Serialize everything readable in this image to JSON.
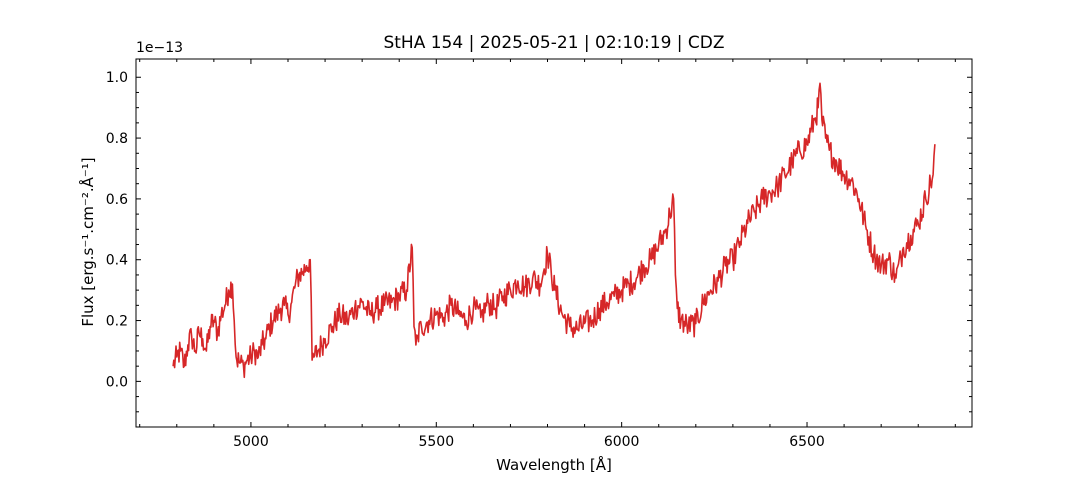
{
  "chart_data": {
    "type": "line",
    "title": "StHA 154 | 2025-05-21 | 02:10:19 | CDZ",
    "xlabel": "Wavelength [Å]",
    "ylabel": "Flux [erg.s⁻¹.cm⁻².Å⁻¹]",
    "y_offset_label": "1e−13",
    "xlim": [
      4690,
      6945
    ],
    "ylim": [
      -0.15,
      1.06
    ],
    "y_scale_factor": 1e-13,
    "x_ticks": [
      5000,
      5500,
      6000,
      6500
    ],
    "x_tick_labels": [
      "5000",
      "5500",
      "6000",
      "6500"
    ],
    "y_ticks": [
      0.0,
      0.2,
      0.4,
      0.6,
      0.8,
      1.0
    ],
    "y_tick_labels": [
      "0.0",
      "0.2",
      "0.4",
      "0.6",
      "0.8",
      "1.0"
    ],
    "grid": false,
    "line_color": "#d62728",
    "series": [
      {
        "x": [
          4790,
          4800,
          4810,
          4820,
          4830,
          4840,
          4850,
          4860,
          4870,
          4880,
          4890,
          4900,
          4910,
          4920,
          4930,
          4940,
          4950,
          4955,
          4960,
          4970,
          4980,
          4990,
          5000,
          5010,
          5020,
          5030,
          5040,
          5050,
          5060,
          5070,
          5080,
          5090,
          5100,
          5110,
          5120,
          5130,
          5140,
          5150,
          5160,
          5165,
          5170,
          5180,
          5190,
          5200,
          5220,
          5240,
          5260,
          5280,
          5300,
          5320,
          5340,
          5360,
          5380,
          5400,
          5420,
          5435,
          5440,
          5445,
          5450,
          5460,
          5480,
          5500,
          5520,
          5540,
          5560,
          5580,
          5600,
          5620,
          5640,
          5660,
          5680,
          5700,
          5720,
          5740,
          5760,
          5780,
          5800,
          5810,
          5820,
          5840,
          5860,
          5880,
          5900,
          5920,
          5940,
          5960,
          5980,
          6000,
          6020,
          6040,
          6060,
          6080,
          6100,
          6120,
          6130,
          6140,
          6145,
          6150,
          6160,
          6180,
          6200,
          6220,
          6240,
          6260,
          6280,
          6300,
          6320,
          6340,
          6360,
          6380,
          6400,
          6420,
          6440,
          6460,
          6480,
          6500,
          6510,
          6520,
          6530,
          6535,
          6540,
          6550,
          6560,
          6580,
          6600,
          6620,
          6640,
          6660,
          6680,
          6700,
          6720,
          6740,
          6760,
          6780,
          6800,
          6820,
          6840,
          6845
        ],
        "y": [
          0.05,
          0.08,
          0.1,
          0.05,
          0.12,
          0.15,
          0.1,
          0.16,
          0.14,
          0.1,
          0.18,
          0.2,
          0.16,
          0.22,
          0.25,
          0.3,
          0.32,
          0.2,
          0.08,
          0.06,
          0.05,
          0.07,
          0.08,
          0.1,
          0.08,
          0.12,
          0.14,
          0.18,
          0.2,
          0.22,
          0.24,
          0.25,
          0.22,
          0.26,
          0.32,
          0.35,
          0.36,
          0.38,
          0.4,
          0.07,
          0.08,
          0.1,
          0.12,
          0.14,
          0.18,
          0.22,
          0.2,
          0.24,
          0.26,
          0.22,
          0.24,
          0.25,
          0.26,
          0.28,
          0.3,
          0.44,
          0.18,
          0.12,
          0.15,
          0.18,
          0.2,
          0.22,
          0.21,
          0.25,
          0.22,
          0.2,
          0.24,
          0.21,
          0.26,
          0.24,
          0.28,
          0.3,
          0.33,
          0.31,
          0.34,
          0.32,
          0.42,
          0.36,
          0.3,
          0.22,
          0.18,
          0.17,
          0.19,
          0.2,
          0.24,
          0.26,
          0.28,
          0.3,
          0.32,
          0.34,
          0.38,
          0.4,
          0.45,
          0.5,
          0.55,
          0.6,
          0.35,
          0.24,
          0.2,
          0.18,
          0.19,
          0.26,
          0.3,
          0.33,
          0.38,
          0.4,
          0.46,
          0.52,
          0.56,
          0.6,
          0.62,
          0.64,
          0.68,
          0.72,
          0.76,
          0.78,
          0.82,
          0.86,
          0.9,
          0.98,
          0.86,
          0.8,
          0.76,
          0.72,
          0.68,
          0.66,
          0.6,
          0.5,
          0.42,
          0.38,
          0.4,
          0.34,
          0.44,
          0.48,
          0.52,
          0.6,
          0.68,
          0.78
        ]
      }
    ]
  }
}
